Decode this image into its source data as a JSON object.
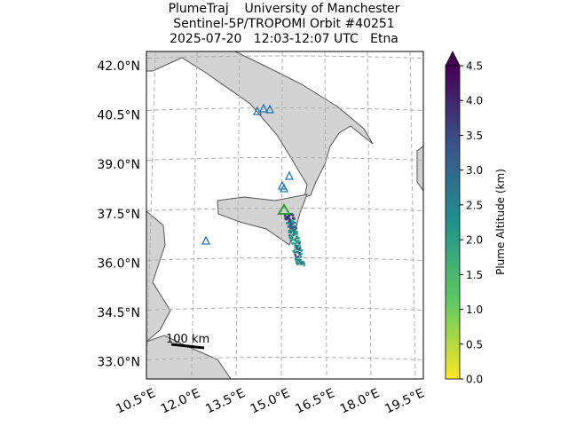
{
  "title": [
    "PlumeTraj    University of Manchester",
    "Sentinel-5P/TROPOMI Orbit #40251",
    "2025-07-20   12:03-12:07 UTC   Etna"
  ],
  "map": {
    "lat_labels": [
      "42.0°N",
      "40.5°N",
      "39.0°N",
      "37.5°N",
      "36.0°N",
      "34.5°N",
      "33.0°N"
    ],
    "lon_labels": [
      "10.5°E",
      "12.0°E",
      "13.5°E",
      "15.0°E",
      "16.5°E",
      "18.0°E",
      "19.5°E"
    ],
    "scale_bar": "100 km"
  },
  "colorbar": {
    "label": "Plume Altitude (km)",
    "lim": [
      0,
      4.5
    ],
    "ticks": [
      {
        "value": 0,
        "label": "0.0"
      },
      {
        "value": 0.5,
        "label": "0.5"
      },
      {
        "value": 1,
        "label": "1.0"
      },
      {
        "value": 1.5,
        "label": "1.5"
      },
      {
        "value": 2,
        "label": "2.0"
      },
      {
        "value": 2.5,
        "label": "2.5"
      },
      {
        "value": 3,
        "label": "3.0"
      },
      {
        "value": 3.5,
        "label": "3.5"
      },
      {
        "value": 4,
        "label": "4.0"
      },
      {
        "value": 4.5,
        "label": "4.5"
      }
    ]
  }
}
